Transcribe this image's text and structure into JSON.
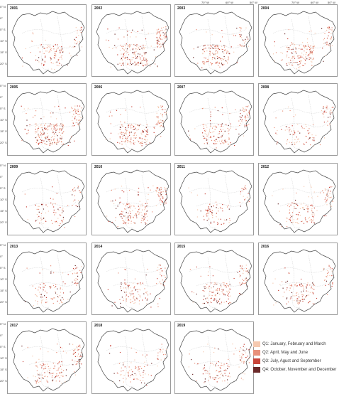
{
  "top_axis": [
    "70° W",
    "60° W",
    "50° W"
  ],
  "lat_axis": [
    "5° N",
    "0°",
    "5° S",
    "10° S",
    "15° S",
    "20° S"
  ],
  "years": [
    "2001",
    "2002",
    "2003",
    "2004",
    "2005",
    "2006",
    "2007",
    "2008",
    "2009",
    "2010",
    "2011",
    "2012",
    "2013",
    "2014",
    "2015",
    "2016",
    "2017",
    "2018",
    "2019"
  ],
  "legend": [
    {
      "label": "Q1: January, February and March",
      "color": "#f5c9b0"
    },
    {
      "label": "Q2: April, May and June",
      "color": "#e8907a"
    },
    {
      "label": "Q3: July, Agust and September",
      "color": "#c8453a"
    },
    {
      "label": "Q4: October, November and December",
      "color": "#6b2a2a"
    }
  ]
}
